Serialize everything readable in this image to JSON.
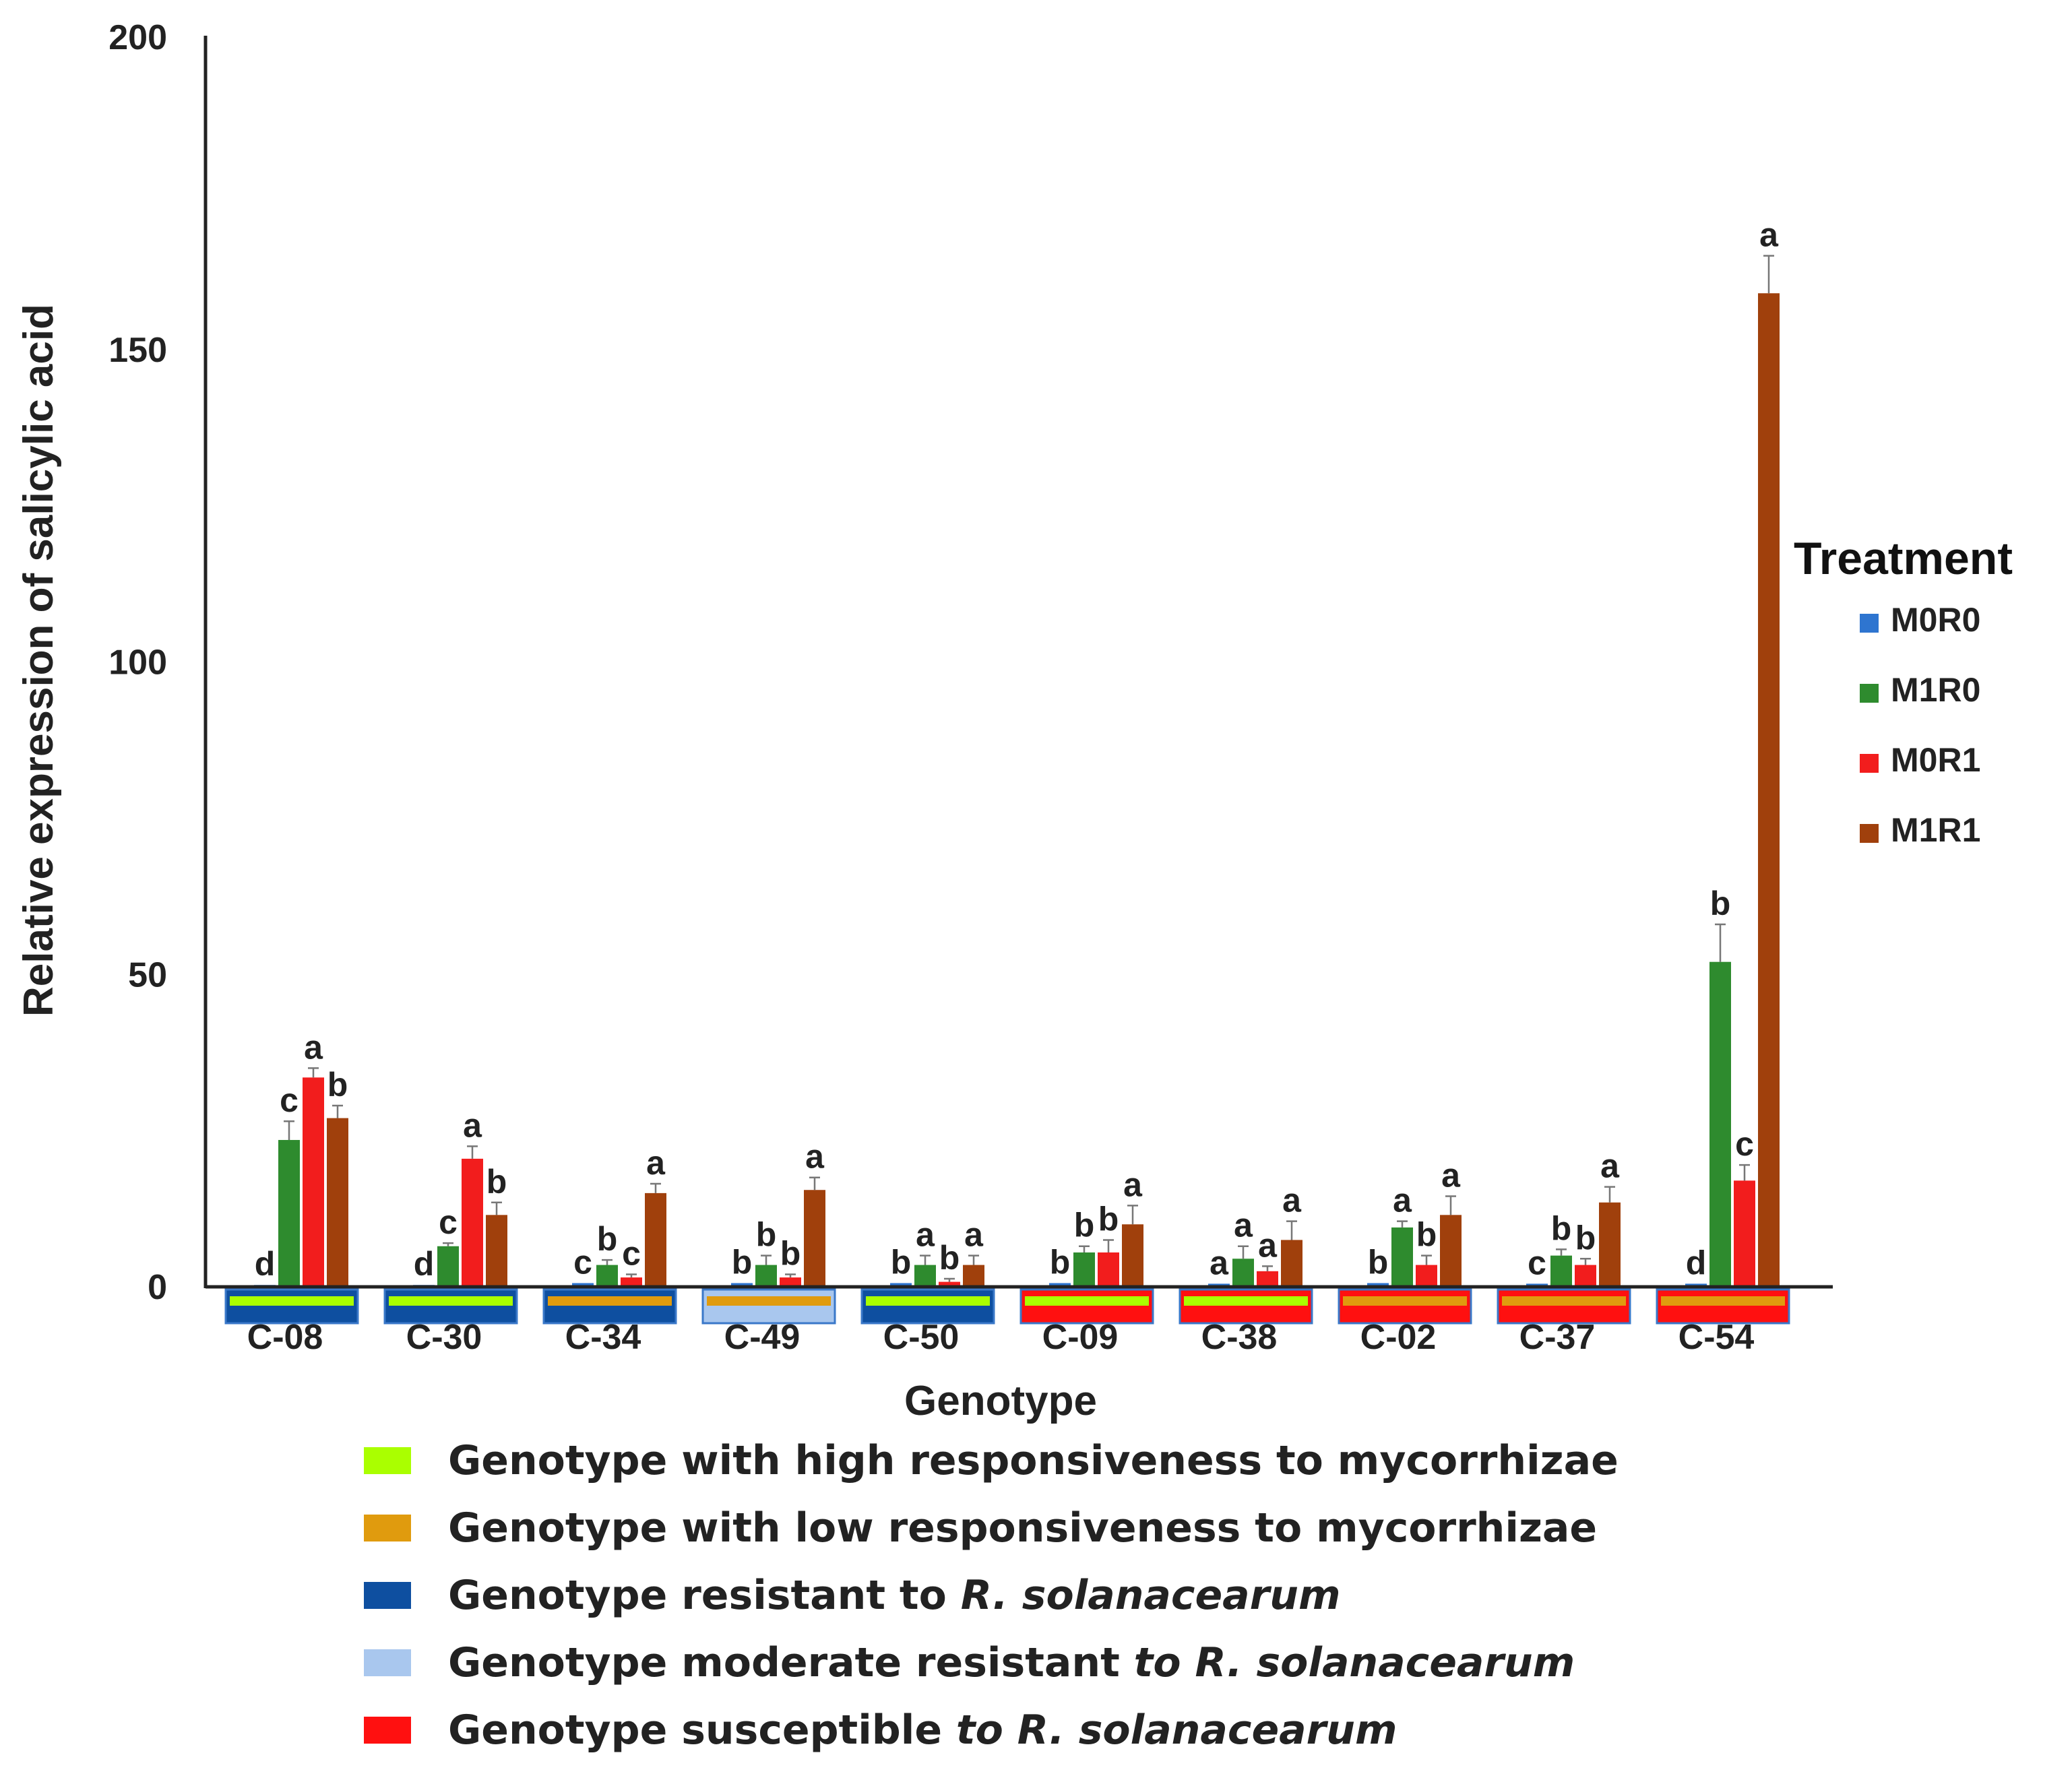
{
  "chart_data": {
    "type": "bar",
    "title": "",
    "xlabel": "Genotype",
    "ylabel": "Relative expression of salicylic acid",
    "ylim": [
      0,
      200
    ],
    "yticks": [
      "0",
      "50",
      "100",
      "150",
      "200"
    ],
    "categories": [
      "C-08",
      "C-30",
      "C-34",
      "C-49",
      "C-50",
      "C-09",
      "C-38",
      "C-02",
      "C-37",
      "C-54"
    ],
    "series": [
      {
        "name": "M0R0",
        "color": "#2E75D0",
        "values": [
          0.3,
          0.3,
          0.6,
          0.6,
          0.6,
          0.6,
          0.5,
          0.6,
          0.5,
          0.5
        ],
        "errors": [
          0,
          0,
          0,
          0,
          0,
          0,
          0,
          0,
          0,
          0
        ],
        "letters": [
          "d",
          "d",
          "c",
          "b",
          "b",
          "b",
          "a",
          "b",
          "c",
          "d"
        ]
      },
      {
        "name": "M1R0",
        "color": "#2E8B2E",
        "values": [
          23.5,
          6.5,
          3.5,
          3.5,
          3.5,
          5.5,
          4.5,
          9.5,
          5,
          52
        ],
        "errors": [
          3,
          0.5,
          0.8,
          1.5,
          1.5,
          1,
          2,
          1,
          1,
          6
        ],
        "letters": [
          "c",
          "c",
          "b",
          "b",
          "a",
          "b",
          "a",
          "a",
          "b",
          "b"
        ]
      },
      {
        "name": "M0R1",
        "color": "#F21D1D",
        "values": [
          33.5,
          20.5,
          1.5,
          1.5,
          0.8,
          5.5,
          2.5,
          3.5,
          3.5,
          17
        ],
        "errors": [
          1.5,
          2,
          0.5,
          0.5,
          0.5,
          2,
          0.8,
          1.5,
          1,
          2.5
        ],
        "letters": [
          "a",
          "a",
          "c",
          "b",
          "b",
          "b",
          "a",
          "b",
          "b",
          "c"
        ]
      },
      {
        "name": "M1R1",
        "color": "#A0400C",
        "values": [
          27,
          11.5,
          15,
          15.5,
          3.5,
          10,
          7.5,
          11.5,
          13.5,
          159
        ],
        "errors": [
          2,
          2,
          1.5,
          2,
          1.5,
          3,
          3,
          3,
          2.5,
          6
        ],
        "letters": [
          "b",
          "b",
          "a",
          "a",
          "a",
          "a",
          "a",
          "a",
          "a",
          "a"
        ]
      }
    ],
    "legend_title": "Treatment",
    "legend_position": "right",
    "genotype_class": {
      "responsiveness": [
        "high",
        "high",
        "low",
        "low",
        "high",
        "high",
        "high",
        "low",
        "low",
        "low"
      ],
      "resistance": [
        "resistant",
        "resistant",
        "resistant",
        "moderate",
        "resistant",
        "susceptible",
        "susceptible",
        "susceptible",
        "susceptible",
        "susceptible"
      ]
    },
    "class_legend": [
      {
        "key": "high",
        "color": "#AAFF00",
        "text": "Genotype with high responsiveness to mycorrhizae",
        "italic": ""
      },
      {
        "key": "low",
        "color": "#E09B0E",
        "text": "Genotype with low responsiveness to mycorrhizae",
        "italic": ""
      },
      {
        "key": "resistant",
        "color": "#0E4FA0",
        "text": "Genotype resistant to ",
        "italic": "R. solanacearum"
      },
      {
        "key": "moderate",
        "color": "#A9C7EE",
        "text": "Genotype moderate resistant ",
        "italic": "to R. solanacearum"
      },
      {
        "key": "susceptible",
        "color": "#FF1010",
        "text": "Genotype susceptible ",
        "italic": "to R. solanacearum"
      }
    ]
  }
}
